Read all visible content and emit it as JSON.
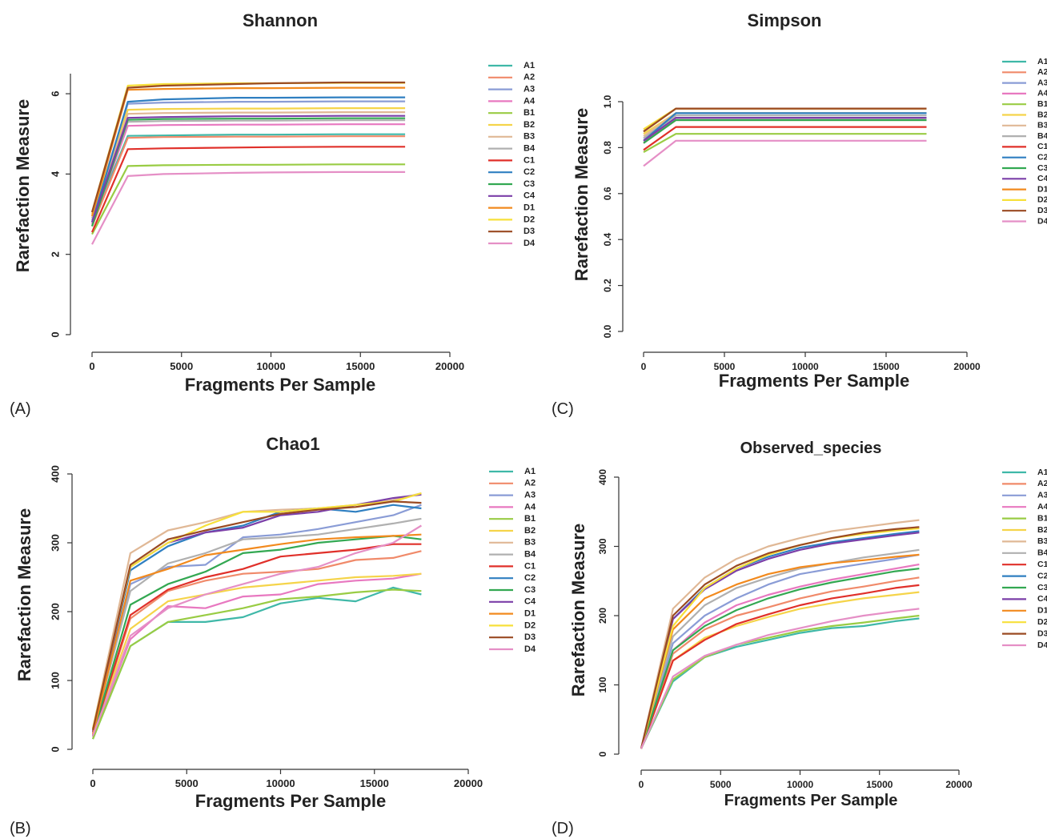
{
  "chart_data": [
    {
      "panel": "(A)",
      "type": "line",
      "title": "Shannon",
      "xlabel": "Fragments Per Sample",
      "ylabel": "Rarefaction Measure",
      "xlim": [
        0,
        20000
      ],
      "ylim": [
        0,
        6.5
      ],
      "xticks": [
        "0",
        "5000",
        "10000",
        "15000",
        "20000"
      ],
      "yticks": [
        "0",
        "2",
        "4",
        "6"
      ],
      "ytick_values": [
        0,
        2,
        4,
        6
      ],
      "legend_position": "right",
      "grid": false,
      "x": [
        0,
        2000,
        4000,
        8000,
        10000,
        14000,
        17500
      ],
      "series": [
        {
          "name": "A1",
          "color": "#3fb8a8",
          "values": [
            2.8,
            4.95,
            4.96,
            4.98,
            4.98,
            4.99,
            4.99
          ]
        },
        {
          "name": "A2",
          "color": "#f08a6a",
          "values": [
            2.7,
            4.9,
            4.92,
            4.93,
            4.93,
            4.94,
            4.94
          ]
        },
        {
          "name": "A3",
          "color": "#8a9cd6",
          "values": [
            2.9,
            5.75,
            5.78,
            5.8,
            5.8,
            5.81,
            5.81
          ]
        },
        {
          "name": "A4",
          "color": "#e878c0",
          "values": [
            2.75,
            5.2,
            5.22,
            5.23,
            5.23,
            5.24,
            5.24
          ]
        },
        {
          "name": "B1",
          "color": "#99cc44",
          "values": [
            2.5,
            4.2,
            4.22,
            4.23,
            4.23,
            4.24,
            4.24
          ]
        },
        {
          "name": "B2",
          "color": "#f5d44a",
          "values": [
            3.0,
            5.6,
            5.62,
            5.63,
            5.63,
            5.64,
            5.64
          ]
        },
        {
          "name": "B3",
          "color": "#e0b896",
          "values": [
            2.9,
            5.5,
            5.52,
            5.53,
            5.53,
            5.54,
            5.54
          ]
        },
        {
          "name": "B4",
          "color": "#b0b0b0",
          "values": [
            2.85,
            5.3,
            5.32,
            5.33,
            5.33,
            5.34,
            5.34
          ]
        },
        {
          "name": "C1",
          "color": "#e0302a",
          "values": [
            2.55,
            4.62,
            4.64,
            4.66,
            4.67,
            4.68,
            4.68
          ]
        },
        {
          "name": "C2",
          "color": "#2f7fc1",
          "values": [
            2.8,
            5.8,
            5.86,
            5.9,
            5.9,
            5.91,
            5.91
          ]
        },
        {
          "name": "C3",
          "color": "#33a852",
          "values": [
            2.7,
            5.35,
            5.37,
            5.38,
            5.38,
            5.39,
            5.39
          ]
        },
        {
          "name": "C4",
          "color": "#7b3fa8",
          "values": [
            2.8,
            5.4,
            5.42,
            5.44,
            5.44,
            5.45,
            5.45
          ]
        },
        {
          "name": "D1",
          "color": "#f28a1e",
          "values": [
            2.95,
            6.1,
            6.12,
            6.14,
            6.14,
            6.15,
            6.15
          ]
        },
        {
          "name": "D2",
          "color": "#f7e03a",
          "values": [
            3.05,
            6.2,
            6.24,
            6.26,
            6.26,
            6.27,
            6.27
          ]
        },
        {
          "name": "D3",
          "color": "#9a4a22",
          "values": [
            3.05,
            6.15,
            6.2,
            6.24,
            6.26,
            6.28,
            6.28
          ]
        },
        {
          "name": "D4",
          "color": "#e58fc6",
          "values": [
            2.25,
            3.95,
            4.0,
            4.03,
            4.04,
            4.05,
            4.05
          ]
        }
      ]
    },
    {
      "panel": "(C)",
      "type": "line",
      "title": "Simpson",
      "xlabel": "Fragments Per Sample",
      "ylabel": "Rarefaction Measure",
      "xlim": [
        0,
        20000
      ],
      "ylim": [
        0,
        1.0
      ],
      "xticks": [
        "0",
        "5000",
        "10000",
        "15000",
        "20000"
      ],
      "yticks": [
        "0.0",
        "0.2",
        "0.4",
        "0.6",
        "0.8",
        "1.0"
      ],
      "ytick_values": [
        0,
        0.2,
        0.4,
        0.6,
        0.8,
        1.0
      ],
      "legend_position": "right",
      "grid": false,
      "x": [
        0,
        2000,
        8000,
        17500
      ],
      "series": [
        {
          "name": "A1",
          "color": "#3fb8a8",
          "values": [
            0.83,
            0.93,
            0.93,
            0.93
          ]
        },
        {
          "name": "A2",
          "color": "#f08a6a",
          "values": [
            0.82,
            0.92,
            0.92,
            0.92
          ]
        },
        {
          "name": "A3",
          "color": "#8a9cd6",
          "values": [
            0.84,
            0.95,
            0.95,
            0.95
          ]
        },
        {
          "name": "A4",
          "color": "#e878c0",
          "values": [
            0.82,
            0.93,
            0.93,
            0.93
          ]
        },
        {
          "name": "B1",
          "color": "#99cc44",
          "values": [
            0.78,
            0.86,
            0.86,
            0.86
          ]
        },
        {
          "name": "B2",
          "color": "#f5d44a",
          "values": [
            0.86,
            0.95,
            0.95,
            0.95
          ]
        },
        {
          "name": "B3",
          "color": "#e0b896",
          "values": [
            0.85,
            0.95,
            0.95,
            0.95
          ]
        },
        {
          "name": "B4",
          "color": "#b0b0b0",
          "values": [
            0.84,
            0.94,
            0.94,
            0.94
          ]
        },
        {
          "name": "C1",
          "color": "#e0302a",
          "values": [
            0.79,
            0.89,
            0.89,
            0.89
          ]
        },
        {
          "name": "C2",
          "color": "#2f7fc1",
          "values": [
            0.83,
            0.95,
            0.95,
            0.95
          ]
        },
        {
          "name": "C3",
          "color": "#33a852",
          "values": [
            0.82,
            0.92,
            0.92,
            0.92
          ]
        },
        {
          "name": "C4",
          "color": "#7b3fa8",
          "values": [
            0.83,
            0.93,
            0.93,
            0.93
          ]
        },
        {
          "name": "D1",
          "color": "#f28a1e",
          "values": [
            0.87,
            0.97,
            0.97,
            0.97
          ]
        },
        {
          "name": "D2",
          "color": "#f7e03a",
          "values": [
            0.88,
            0.97,
            0.97,
            0.97
          ]
        },
        {
          "name": "D3",
          "color": "#9a4a22",
          "values": [
            0.87,
            0.97,
            0.97,
            0.97
          ]
        },
        {
          "name": "D4",
          "color": "#e58fc6",
          "values": [
            0.72,
            0.83,
            0.83,
            0.83
          ]
        }
      ]
    },
    {
      "panel": "(B)",
      "type": "line",
      "title": "Chao1",
      "xlabel": "Fragments Per Sample",
      "ylabel": "Rarefaction Measure",
      "xlim": [
        0,
        20000
      ],
      "ylim": [
        0,
        400
      ],
      "xticks": [
        "0",
        "5000",
        "10000",
        "15000",
        "20000"
      ],
      "yticks": [
        "0",
        "100",
        "200",
        "300",
        "400"
      ],
      "ytick_values": [
        0,
        100,
        200,
        300,
        400
      ],
      "legend_position": "right",
      "grid": false,
      "x": [
        0,
        2000,
        4000,
        6000,
        8000,
        10000,
        12000,
        14000,
        16000,
        17500
      ],
      "series": [
        {
          "name": "A1",
          "color": "#3fb8a8",
          "values": [
            15,
            150,
            185,
            185,
            192,
            212,
            220,
            215,
            235,
            225
          ]
        },
        {
          "name": "A2",
          "color": "#f08a6a",
          "values": [
            20,
            190,
            230,
            245,
            255,
            258,
            262,
            275,
            278,
            288
          ]
        },
        {
          "name": "A3",
          "color": "#8a9cd6",
          "values": [
            25,
            240,
            265,
            268,
            308,
            312,
            320,
            330,
            340,
            355
          ]
        },
        {
          "name": "A4",
          "color": "#e878c0",
          "values": [
            18,
            160,
            208,
            205,
            222,
            225,
            240,
            245,
            248,
            255
          ]
        },
        {
          "name": "B1",
          "color": "#99cc44",
          "values": [
            15,
            150,
            185,
            195,
            205,
            218,
            222,
            228,
            232,
            230
          ]
        },
        {
          "name": "B2",
          "color": "#f5d44a",
          "values": [
            22,
            175,
            215,
            225,
            235,
            240,
            245,
            250,
            252,
            255
          ]
        },
        {
          "name": "B3",
          "color": "#e0b896",
          "values": [
            30,
            285,
            318,
            330,
            345,
            348,
            350,
            355,
            362,
            372
          ]
        },
        {
          "name": "B4",
          "color": "#b0b0b0",
          "values": [
            25,
            230,
            270,
            285,
            305,
            308,
            312,
            320,
            328,
            335
          ]
        },
        {
          "name": "C1",
          "color": "#e0302a",
          "values": [
            20,
            195,
            232,
            250,
            262,
            280,
            285,
            290,
            298,
            298
          ]
        },
        {
          "name": "C2",
          "color": "#2f7fc1",
          "values": [
            25,
            260,
            295,
            315,
            325,
            345,
            350,
            345,
            355,
            350
          ]
        },
        {
          "name": "C3",
          "color": "#33a852",
          "values": [
            20,
            210,
            240,
            258,
            285,
            290,
            300,
            305,
            310,
            305
          ]
        },
        {
          "name": "C4",
          "color": "#7b3fa8",
          "values": [
            25,
            265,
            300,
            315,
            322,
            340,
            345,
            355,
            365,
            370
          ]
        },
        {
          "name": "D1",
          "color": "#f28a1e",
          "values": [
            22,
            245,
            262,
            282,
            290,
            298,
            305,
            308,
            310,
            312
          ]
        },
        {
          "name": "D2",
          "color": "#f7e03a",
          "values": [
            30,
            265,
            300,
            325,
            345,
            345,
            350,
            355,
            360,
            372
          ]
        },
        {
          "name": "D3",
          "color": "#9a4a22",
          "values": [
            28,
            268,
            305,
            318,
            330,
            342,
            348,
            352,
            360,
            358
          ]
        },
        {
          "name": "D4",
          "color": "#e58fc6",
          "values": [
            20,
            165,
            205,
            225,
            240,
            255,
            265,
            285,
            300,
            325
          ]
        }
      ]
    },
    {
      "panel": "(D)",
      "type": "line",
      "title": "Observed_species",
      "xlabel": "Fragments Per Sample",
      "ylabel": "Rarefaction Measure",
      "xlim": [
        0,
        20000
      ],
      "ylim": [
        0,
        400
      ],
      "xticks": [
        "0",
        "5000",
        "10000",
        "15000",
        "20000"
      ],
      "yticks": [
        "0",
        "100",
        "200",
        "300",
        "400"
      ],
      "ytick_values": [
        0,
        100,
        200,
        300,
        400
      ],
      "legend_position": "right",
      "grid": false,
      "x": [
        0,
        2000,
        4000,
        6000,
        8000,
        10000,
        12000,
        14000,
        16000,
        17500
      ],
      "series": [
        {
          "name": "A1",
          "color": "#3fb8a8",
          "values": [
            8,
            105,
            140,
            155,
            165,
            175,
            182,
            185,
            192,
            196
          ]
        },
        {
          "name": "A2",
          "color": "#f08a6a",
          "values": [
            8,
            145,
            180,
            200,
            212,
            225,
            235,
            242,
            250,
            255
          ]
        },
        {
          "name": "A3",
          "color": "#8a9cd6",
          "values": [
            8,
            160,
            200,
            225,
            245,
            260,
            268,
            275,
            282,
            288
          ]
        },
        {
          "name": "A4",
          "color": "#e878c0",
          "values": [
            8,
            150,
            190,
            215,
            230,
            242,
            252,
            260,
            268,
            274
          ]
        },
        {
          "name": "B1",
          "color": "#99cc44",
          "values": [
            8,
            108,
            140,
            158,
            168,
            178,
            185,
            190,
            196,
            200
          ]
        },
        {
          "name": "B2",
          "color": "#f5d44a",
          "values": [
            8,
            135,
            168,
            185,
            198,
            210,
            218,
            225,
            230,
            234
          ]
        },
        {
          "name": "B3",
          "color": "#e0b896",
          "values": [
            8,
            210,
            255,
            282,
            300,
            312,
            322,
            328,
            334,
            338
          ]
        },
        {
          "name": "B4",
          "color": "#b0b0b0",
          "values": [
            8,
            170,
            215,
            240,
            255,
            268,
            276,
            284,
            290,
            295
          ]
        },
        {
          "name": "C1",
          "color": "#e0302a",
          "values": [
            8,
            135,
            165,
            188,
            202,
            215,
            225,
            232,
            240,
            244
          ]
        },
        {
          "name": "C2",
          "color": "#2f7fc1",
          "values": [
            8,
            195,
            240,
            268,
            285,
            298,
            306,
            312,
            318,
            322
          ]
        },
        {
          "name": "C3",
          "color": "#33a852",
          "values": [
            8,
            150,
            185,
            208,
            225,
            238,
            248,
            256,
            264,
            268
          ]
        },
        {
          "name": "C4",
          "color": "#7b3fa8",
          "values": [
            8,
            195,
            238,
            265,
            282,
            295,
            304,
            310,
            316,
            320
          ]
        },
        {
          "name": "D1",
          "color": "#f28a1e",
          "values": [
            8,
            180,
            225,
            245,
            260,
            270,
            276,
            280,
            285,
            288
          ]
        },
        {
          "name": "D2",
          "color": "#f7e03a",
          "values": [
            8,
            185,
            240,
            268,
            288,
            302,
            312,
            318,
            323,
            326
          ]
        },
        {
          "name": "D3",
          "color": "#9a4a22",
          "values": [
            8,
            200,
            245,
            272,
            290,
            302,
            312,
            320,
            325,
            328
          ]
        },
        {
          "name": "D4",
          "color": "#e58fc6",
          "values": [
            8,
            112,
            142,
            158,
            172,
            182,
            192,
            200,
            206,
            210
          ]
        }
      ]
    }
  ]
}
